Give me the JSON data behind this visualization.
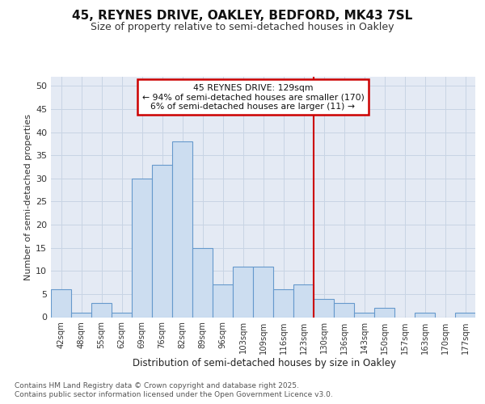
{
  "title": "45, REYNES DRIVE, OAKLEY, BEDFORD, MK43 7SL",
  "subtitle": "Size of property relative to semi-detached houses in Oakley",
  "xlabel": "Distribution of semi-detached houses by size in Oakley",
  "ylabel": "Number of semi-detached properties",
  "categories": [
    "42sqm",
    "48sqm",
    "55sqm",
    "62sqm",
    "69sqm",
    "76sqm",
    "82sqm",
    "89sqm",
    "96sqm",
    "103sqm",
    "109sqm",
    "116sqm",
    "123sqm",
    "130sqm",
    "136sqm",
    "143sqm",
    "150sqm",
    "157sqm",
    "163sqm",
    "170sqm",
    "177sqm"
  ],
  "values": [
    6,
    1,
    3,
    1,
    30,
    33,
    38,
    15,
    7,
    11,
    11,
    6,
    7,
    4,
    3,
    1,
    2,
    0,
    1,
    0,
    1
  ],
  "bar_color": "#ccddf0",
  "bar_edge_color": "#6699cc",
  "grid_color": "#c8d4e4",
  "background_color": "#e4eaf4",
  "vline_x": 12.5,
  "vline_color": "#cc0000",
  "annotation_title": "45 REYNES DRIVE: 129sqm",
  "annotation_line1": "← 94% of semi-detached houses are smaller (170)",
  "annotation_line2": "6% of semi-detached houses are larger (11) →",
  "annotation_box_color": "#cc0000",
  "ylim": [
    0,
    52
  ],
  "yticks": [
    0,
    5,
    10,
    15,
    20,
    25,
    30,
    35,
    40,
    45,
    50
  ],
  "footnote1": "Contains HM Land Registry data © Crown copyright and database right 2025.",
  "footnote2": "Contains public sector information licensed under the Open Government Licence v3.0."
}
